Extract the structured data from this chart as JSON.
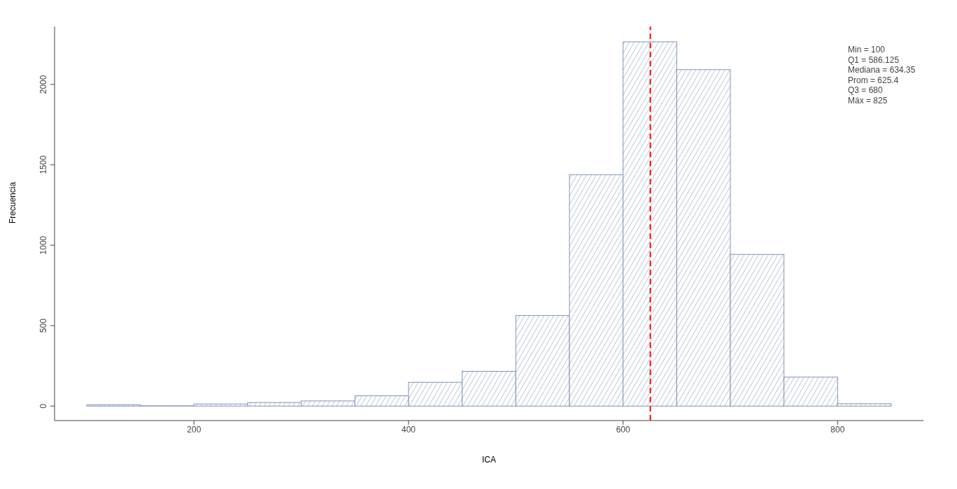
{
  "chart_data": {
    "type": "histogram",
    "xlabel": "ICA",
    "ylabel": "Frecuencia",
    "bins": [
      100,
      150,
      200,
      250,
      300,
      350,
      400,
      450,
      500,
      550,
      600,
      650,
      700,
      750,
      800,
      850
    ],
    "values": [
      8,
      2,
      13,
      22,
      32,
      64,
      148,
      216,
      563,
      1439,
      2265,
      2092,
      943,
      180,
      15
    ],
    "color": "#7f93b8",
    "xlim": [
      70,
      880
    ],
    "xticks": [
      200,
      400,
      600,
      800
    ],
    "ylim": [
      -90,
      2360
    ],
    "yticks": [
      0,
      500,
      1000,
      1500,
      2000
    ],
    "ref_lines": [
      {
        "axis": "x",
        "value": 625.4,
        "color": "#ff0000",
        "line_style": "dashed"
      }
    ],
    "annotations": [
      "Min = 100",
      "Q1 = 586.125",
      "Mediana = 634.35",
      "Prom = 625.4",
      "Q3 = 680",
      "Máx = 825"
    ]
  }
}
